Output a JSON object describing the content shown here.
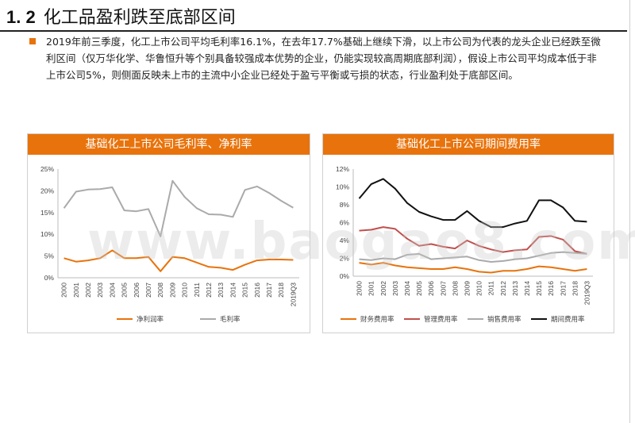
{
  "header": {
    "section_number": "1. 2",
    "title": "化工品盈利跌至底部区间"
  },
  "paragraph": "2019年前三季度，化工上市公司平均毛利率16.1%，在去年17.7%基础上继续下滑，以上市公司为代表的龙头企业已经跌至微利区间（仅万华化学、华鲁恒升等个别具备较强成本优势的企业，仍能实现较高周期底部利润），假设上市公司平均成本低于非上市公司5%，则侧面反映未上市的主流中小企业已经处于盈亏平衡或亏损的状态，行业盈利处于底部区间。",
  "watermark": "www.baogao8.com",
  "colors": {
    "accent": "#e8730c",
    "gray_series": "#aaaaaa",
    "red_series": "#c0504d",
    "black_series": "#111111"
  },
  "chart_data": [
    {
      "type": "line",
      "title": "基础化工上市公司毛利率、净利率",
      "categories": [
        "2000",
        "2001",
        "2002",
        "2003",
        "2004",
        "2005",
        "2006",
        "2007",
        "2008",
        "2009",
        "2010",
        "2011",
        "2012",
        "2013",
        "2014",
        "2015",
        "2016",
        "2017",
        "2018",
        "2019Q3"
      ],
      "ylim": [
        0,
        25
      ],
      "yticks": [
        "0%",
        "5%",
        "10%",
        "15%",
        "20%",
        "25%"
      ],
      "legend_position": "bottom",
      "series": [
        {
          "name": "净利润率",
          "color": "#e8730c",
          "values": [
            4.5,
            3.7,
            4.0,
            4.5,
            6.3,
            4.5,
            4.5,
            4.8,
            1.5,
            4.8,
            4.5,
            3.5,
            2.5,
            2.3,
            1.8,
            3.0,
            4.0,
            4.2,
            4.2,
            4.1
          ]
        },
        {
          "name": "毛利率",
          "color": "#aaaaaa",
          "values": [
            16.0,
            19.8,
            20.3,
            20.4,
            20.8,
            15.5,
            15.3,
            15.8,
            9.5,
            22.3,
            18.6,
            16.0,
            14.6,
            14.5,
            14.0,
            20.2,
            21.0,
            19.5,
            17.7,
            16.1
          ]
        }
      ]
    },
    {
      "type": "line",
      "title": "基础化工上市公司期间费用率",
      "categories": [
        "2000",
        "2001",
        "2002",
        "2003",
        "2004",
        "2005",
        "2006",
        "2007",
        "2008",
        "2009",
        "2010",
        "2011",
        "2012",
        "2013",
        "2014",
        "2015",
        "2016",
        "2017",
        "2018",
        "2019Q3"
      ],
      "ylim": [
        0,
        12
      ],
      "yticks": [
        "0%",
        "2%",
        "4%",
        "6%",
        "8%",
        "10%",
        "12%"
      ],
      "legend_position": "bottom",
      "series": [
        {
          "name": "财务费用率",
          "color": "#e8730c",
          "values": [
            1.5,
            1.3,
            1.5,
            1.2,
            1.0,
            0.9,
            0.8,
            0.8,
            1.0,
            0.8,
            0.5,
            0.4,
            0.6,
            0.6,
            0.8,
            1.1,
            1.0,
            0.8,
            0.6,
            0.8
          ]
        },
        {
          "name": "管理费用率",
          "color": "#c0504d",
          "values": [
            5.1,
            5.2,
            5.5,
            5.3,
            4.2,
            3.4,
            3.6,
            3.3,
            3.1,
            4.0,
            3.4,
            3.0,
            2.7,
            2.9,
            3.0,
            4.4,
            4.5,
            4.1,
            2.8,
            2.5
          ]
        },
        {
          "name": "销售费用率",
          "color": "#aaaaaa",
          "values": [
            1.9,
            1.8,
            2.0,
            1.9,
            2.4,
            2.5,
            1.9,
            2.0,
            2.1,
            2.2,
            1.8,
            1.6,
            1.7,
            1.9,
            2.0,
            2.3,
            2.6,
            2.7,
            2.6,
            2.5
          ]
        },
        {
          "name": "期间费用率",
          "color": "#111111",
          "values": [
            8.7,
            10.3,
            10.9,
            9.8,
            8.2,
            7.2,
            6.7,
            6.3,
            6.3,
            7.3,
            6.2,
            5.5,
            5.5,
            5.9,
            6.2,
            8.5,
            8.5,
            7.7,
            6.2,
            6.1
          ]
        }
      ]
    }
  ]
}
